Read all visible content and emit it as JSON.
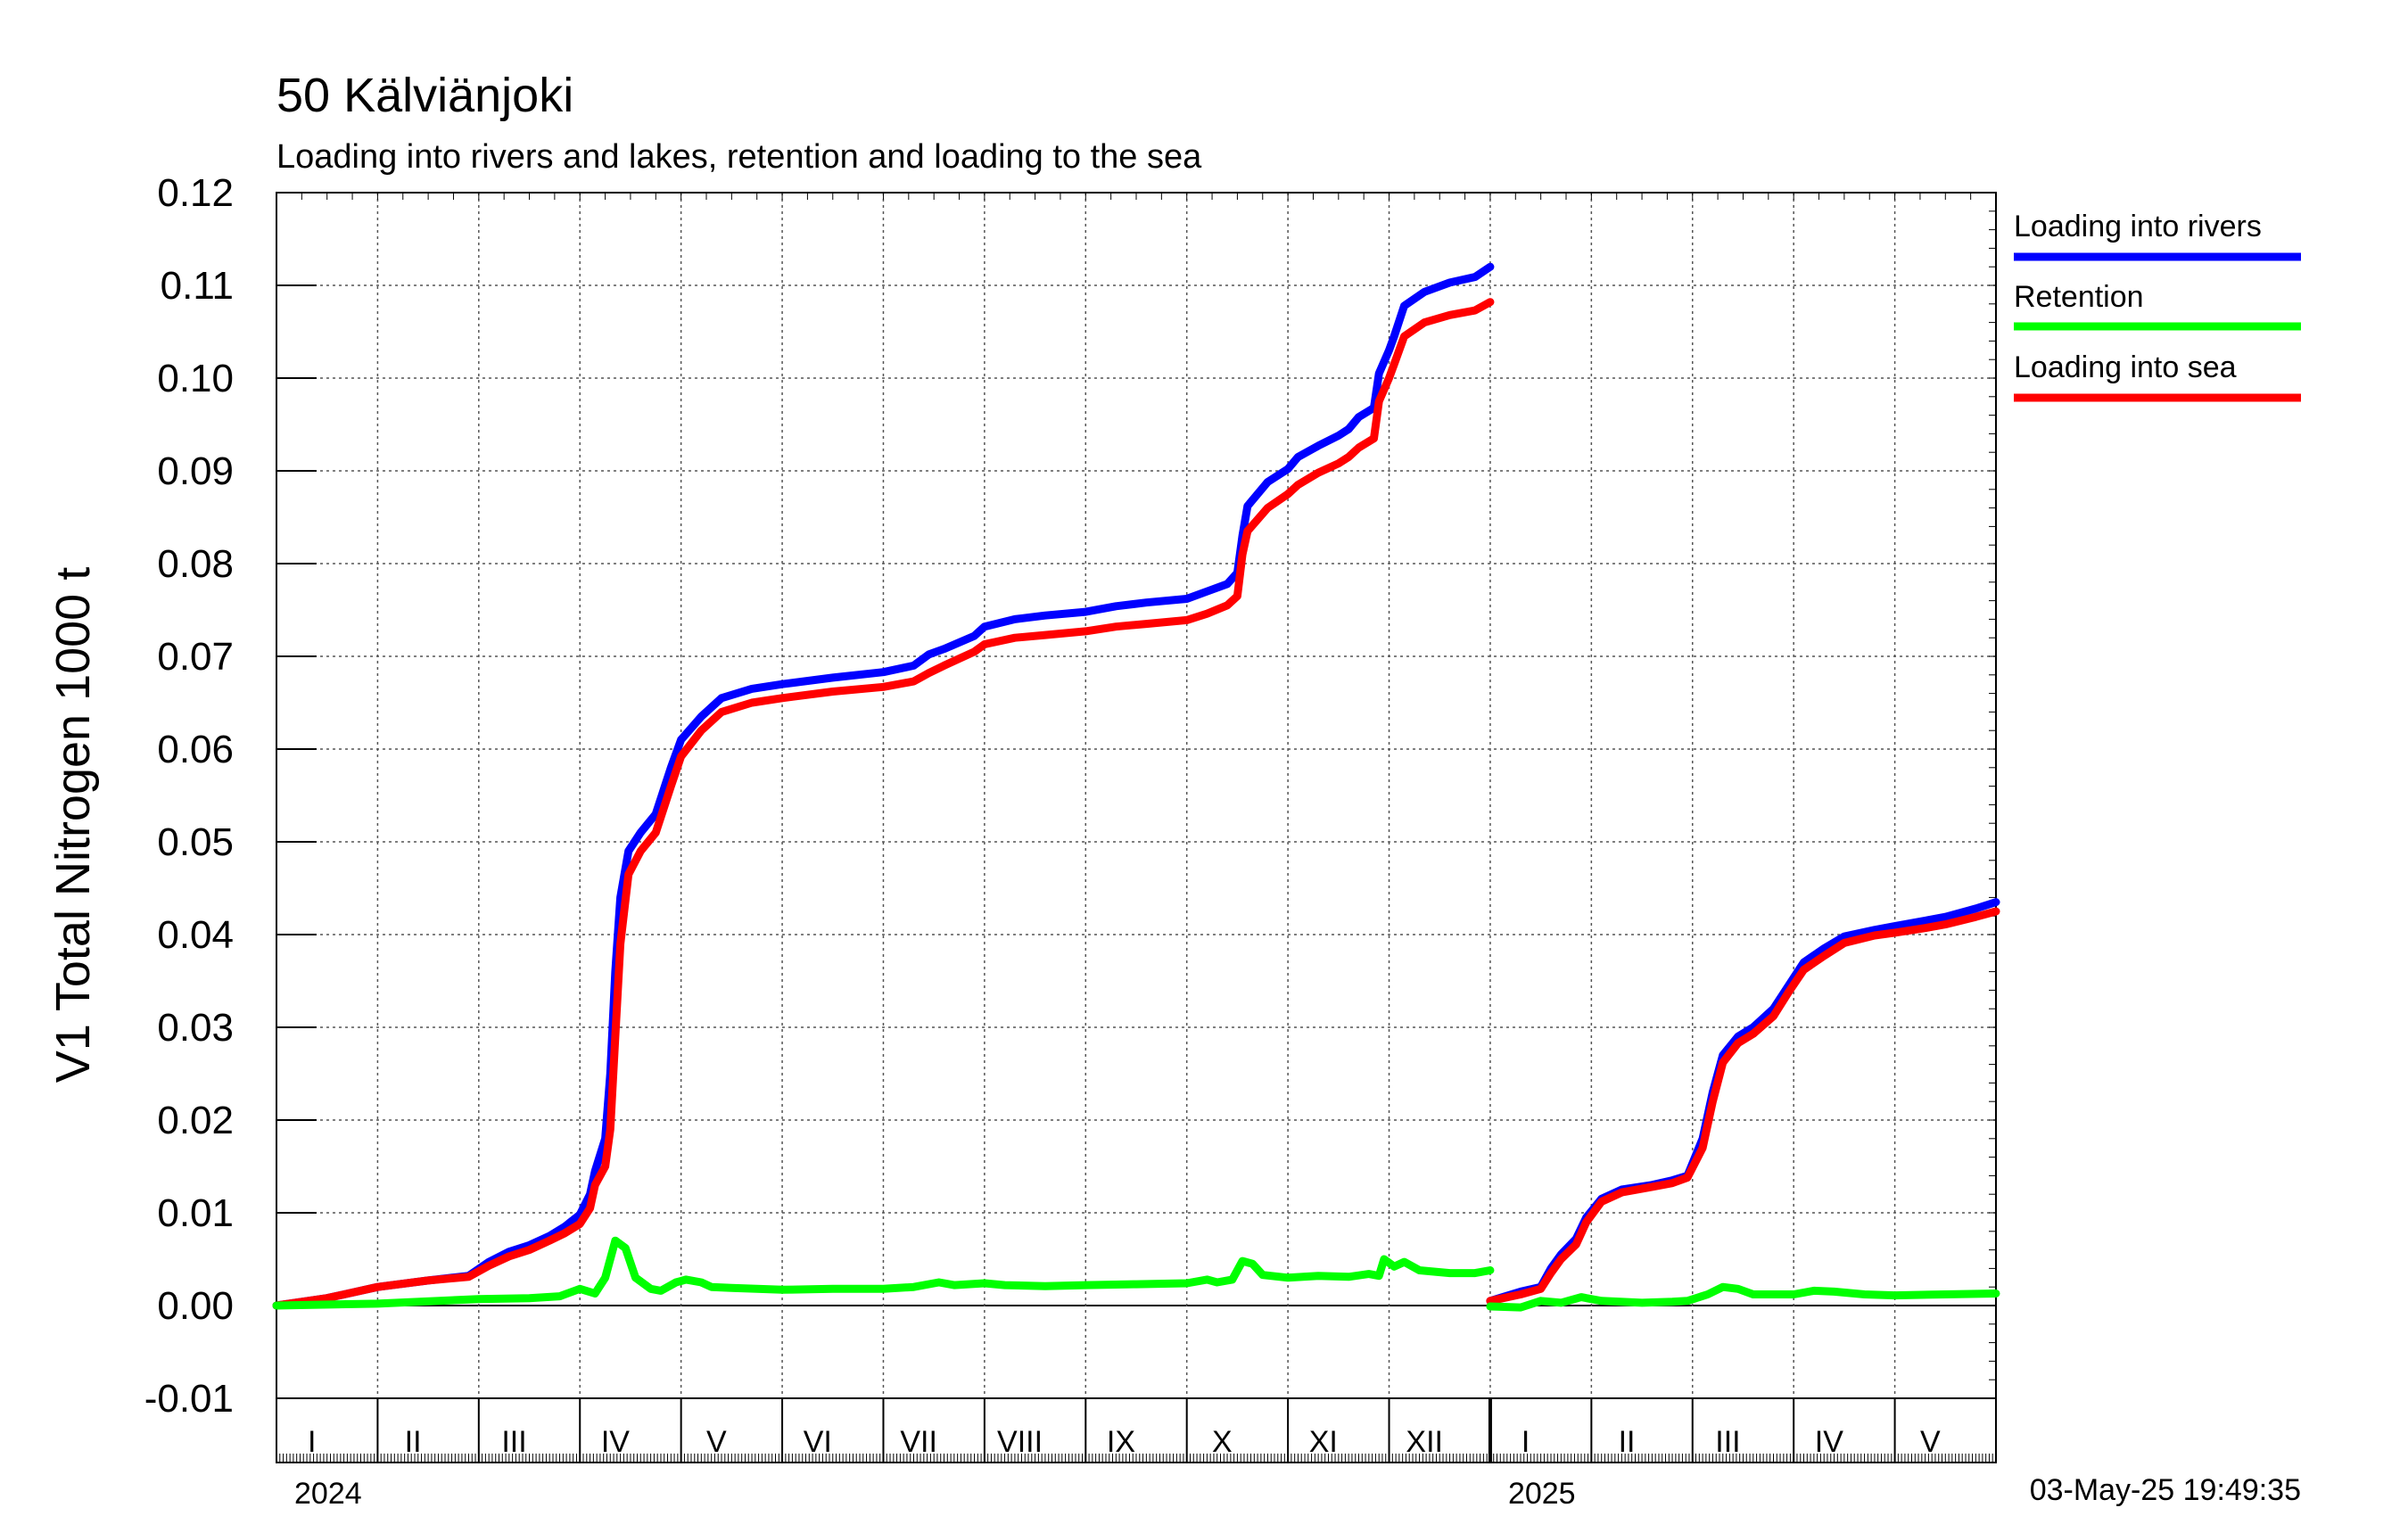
{
  "chart_data": {
    "type": "line",
    "title": "50 Kälviänjoki",
    "subtitle": "Loading into rivers and lakes, retention and loading to the sea",
    "ylabel": "V1 Total Nitrogen 1000 t",
    "xlabel": "",
    "ylim": [
      -0.01,
      0.12
    ],
    "yticks": [
      "0.12",
      "0.11",
      "0.10",
      "0.09",
      "0.08",
      "0.07",
      "0.06",
      "0.05",
      "0.04",
      "0.03",
      "0.02",
      "0.01",
      "0.00",
      "-0.01"
    ],
    "xlim": [
      0,
      17
    ],
    "x_unit": "months since 2024-01-01",
    "grid": true,
    "legend_position": "right",
    "months": [
      {
        "label": "I",
        "start": 0
      },
      {
        "label": "II",
        "start": 1
      },
      {
        "label": "III",
        "start": 2
      },
      {
        "label": "IV",
        "start": 3
      },
      {
        "label": "V",
        "start": 4
      },
      {
        "label": "VI",
        "start": 5
      },
      {
        "label": "VII",
        "start": 6
      },
      {
        "label": "VIII",
        "start": 7
      },
      {
        "label": "IX",
        "start": 8
      },
      {
        "label": "X",
        "start": 9
      },
      {
        "label": "XI",
        "start": 10
      },
      {
        "label": "XII",
        "start": 11
      },
      {
        "label": "I",
        "start": 12
      },
      {
        "label": "II",
        "start": 13
      },
      {
        "label": "III",
        "start": 14
      },
      {
        "label": "IV",
        "start": 15
      },
      {
        "label": "V",
        "start": 16
      }
    ],
    "years": [
      {
        "label": "2024",
        "x": 0
      },
      {
        "label": "2025",
        "x": 12
      }
    ],
    "timestamp": "03-May-25 19:49:35",
    "series": [
      {
        "name": "Loading into rivers",
        "color": "#0000ff",
        "segments": [
          [
            [
              0,
              0
            ],
            [
              0.5,
              0.0008
            ],
            [
              1,
              0.002
            ],
            [
              1.5,
              0.0027
            ],
            [
              1.9,
              0.0032
            ],
            [
              2.1,
              0.0047
            ],
            [
              2.3,
              0.0058
            ],
            [
              2.5,
              0.0065
            ],
            [
              2.7,
              0.0075
            ],
            [
              2.85,
              0.0085
            ],
            [
              3.0,
              0.0098
            ],
            [
              3.1,
              0.012
            ],
            [
              3.15,
              0.0145
            ],
            [
              3.25,
              0.018
            ],
            [
              3.3,
              0.025
            ],
            [
              3.35,
              0.036
            ],
            [
              3.4,
              0.044
            ],
            [
              3.48,
              0.049
            ],
            [
              3.6,
              0.051
            ],
            [
              3.75,
              0.053
            ],
            [
              3.9,
              0.058
            ],
            [
              4.0,
              0.061
            ],
            [
              4.2,
              0.0635
            ],
            [
              4.4,
              0.0655
            ],
            [
              4.7,
              0.0665
            ],
            [
              5.0,
              0.067
            ],
            [
              5.5,
              0.0677
            ],
            [
              6.0,
              0.0683
            ],
            [
              6.3,
              0.069
            ],
            [
              6.45,
              0.0702
            ],
            [
              6.6,
              0.0708
            ],
            [
              6.9,
              0.0722
            ],
            [
              7.0,
              0.0732
            ],
            [
              7.3,
              0.074
            ],
            [
              7.6,
              0.0744
            ],
            [
              8.0,
              0.0748
            ],
            [
              8.3,
              0.0754
            ],
            [
              8.6,
              0.0758
            ],
            [
              9.0,
              0.0762
            ],
            [
              9.2,
              0.077
            ],
            [
              9.4,
              0.0778
            ],
            [
              9.5,
              0.079
            ],
            [
              9.55,
              0.083
            ],
            [
              9.6,
              0.0862
            ],
            [
              9.8,
              0.0888
            ],
            [
              10.0,
              0.0902
            ],
            [
              10.1,
              0.0915
            ],
            [
              10.3,
              0.0927
            ],
            [
              10.5,
              0.0938
            ],
            [
              10.6,
              0.0945
            ],
            [
              10.7,
              0.0958
            ],
            [
              10.85,
              0.0968
            ],
            [
              10.9,
              0.1005
            ],
            [
              11.0,
              0.103
            ],
            [
              11.05,
              0.1045
            ],
            [
              11.15,
              0.1078
            ],
            [
              11.35,
              0.1093
            ],
            [
              11.6,
              0.1103
            ],
            [
              11.85,
              0.1109
            ],
            [
              12.0,
              0.112
            ]
          ],
          [
            [
              12.0,
              0.0005
            ],
            [
              12.3,
              0.0015
            ],
            [
              12.5,
              0.002
            ],
            [
              12.6,
              0.004
            ],
            [
              12.7,
              0.0055
            ],
            [
              12.85,
              0.0072
            ],
            [
              12.95,
              0.0095
            ],
            [
              13.1,
              0.0115
            ],
            [
              13.3,
              0.0125
            ],
            [
              13.6,
              0.013
            ],
            [
              13.8,
              0.0135
            ],
            [
              13.95,
              0.014
            ],
            [
              14.1,
              0.018
            ],
            [
              14.2,
              0.023
            ],
            [
              14.3,
              0.027
            ],
            [
              14.45,
              0.029
            ],
            [
              14.6,
              0.03
            ],
            [
              14.8,
              0.032
            ],
            [
              14.95,
              0.0345
            ],
            [
              15.1,
              0.037
            ],
            [
              15.3,
              0.0385
            ],
            [
              15.5,
              0.0398
            ],
            [
              15.8,
              0.0405
            ],
            [
              16.0,
              0.0409
            ],
            [
              16.3,
              0.0415
            ],
            [
              16.5,
              0.0419
            ],
            [
              16.8,
              0.0428
            ],
            [
              17.0,
              0.0435
            ]
          ]
        ]
      },
      {
        "name": "Retention",
        "color": "#00ff00",
        "segments": [
          [
            [
              0,
              0
            ],
            [
              1,
              0.0002
            ],
            [
              2,
              0.0007
            ],
            [
              2.5,
              0.0008
            ],
            [
              2.8,
              0.001
            ],
            [
              3.0,
              0.0018
            ],
            [
              3.15,
              0.0013
            ],
            [
              3.25,
              0.003
            ],
            [
              3.35,
              0.007
            ],
            [
              3.45,
              0.0062
            ],
            [
              3.55,
              0.003
            ],
            [
              3.7,
              0.0018
            ],
            [
              3.8,
              0.0016
            ],
            [
              3.95,
              0.0025
            ],
            [
              4.05,
              0.0028
            ],
            [
              4.2,
              0.0025
            ],
            [
              4.3,
              0.002
            ],
            [
              4.5,
              0.0019
            ],
            [
              5.0,
              0.0017
            ],
            [
              5.5,
              0.0018
            ],
            [
              6.0,
              0.0018
            ],
            [
              6.3,
              0.002
            ],
            [
              6.55,
              0.0025
            ],
            [
              6.7,
              0.0022
            ],
            [
              7.0,
              0.0024
            ],
            [
              7.2,
              0.0022
            ],
            [
              7.6,
              0.0021
            ],
            [
              8.0,
              0.0022
            ],
            [
              8.5,
              0.0023
            ],
            [
              9.0,
              0.0024
            ],
            [
              9.2,
              0.0028
            ],
            [
              9.3,
              0.0025
            ],
            [
              9.45,
              0.0028
            ],
            [
              9.55,
              0.0048
            ],
            [
              9.65,
              0.0045
            ],
            [
              9.75,
              0.0033
            ],
            [
              10.0,
              0.003
            ],
            [
              10.3,
              0.0032
            ],
            [
              10.6,
              0.0031
            ],
            [
              10.8,
              0.0034
            ],
            [
              10.9,
              0.0032
            ],
            [
              10.95,
              0.005
            ],
            [
              11.05,
              0.0042
            ],
            [
              11.15,
              0.0047
            ],
            [
              11.3,
              0.0038
            ],
            [
              11.6,
              0.0035
            ],
            [
              11.85,
              0.0035
            ],
            [
              12.0,
              0.0038
            ]
          ],
          [
            [
              12.0,
              -0.0001
            ],
            [
              12.3,
              -0.0002
            ],
            [
              12.5,
              0.0005
            ],
            [
              12.7,
              0.0003
            ],
            [
              12.9,
              0.0009
            ],
            [
              13.1,
              0.0005
            ],
            [
              13.5,
              0.0003
            ],
            [
              13.8,
              0.0004
            ],
            [
              13.95,
              0.0005
            ],
            [
              14.15,
              0.0012
            ],
            [
              14.3,
              0.002
            ],
            [
              14.45,
              0.0018
            ],
            [
              14.6,
              0.0012
            ],
            [
              15.0,
              0.0012
            ],
            [
              15.2,
              0.0016
            ],
            [
              15.4,
              0.0015
            ],
            [
              15.7,
              0.0012
            ],
            [
              16.0,
              0.0011
            ],
            [
              16.5,
              0.0012
            ],
            [
              17.0,
              0.0013
            ]
          ]
        ]
      },
      {
        "name": "Loading into sea",
        "color": "#ff0000",
        "segments": [
          [
            [
              0,
              0
            ],
            [
              0.5,
              0.0008
            ],
            [
              1,
              0.002
            ],
            [
              1.5,
              0.0027
            ],
            [
              1.9,
              0.0031
            ],
            [
              2.1,
              0.0043
            ],
            [
              2.3,
              0.0053
            ],
            [
              2.5,
              0.006
            ],
            [
              2.7,
              0.007
            ],
            [
              2.85,
              0.0078
            ],
            [
              3.0,
              0.0088
            ],
            [
              3.1,
              0.0105
            ],
            [
              3.15,
              0.013
            ],
            [
              3.25,
              0.015
            ],
            [
              3.3,
              0.019
            ],
            [
              3.35,
              0.029
            ],
            [
              3.4,
              0.039
            ],
            [
              3.48,
              0.0465
            ],
            [
              3.6,
              0.049
            ],
            [
              3.75,
              0.051
            ],
            [
              3.9,
              0.056
            ],
            [
              4.0,
              0.0592
            ],
            [
              4.2,
              0.062
            ],
            [
              4.4,
              0.064
            ],
            [
              4.7,
              0.065
            ],
            [
              5.0,
              0.0655
            ],
            [
              5.5,
              0.0662
            ],
            [
              6.0,
              0.0667
            ],
            [
              6.3,
              0.0673
            ],
            [
              6.45,
              0.0682
            ],
            [
              6.6,
              0.069
            ],
            [
              6.9,
              0.0705
            ],
            [
              7.0,
              0.0713
            ],
            [
              7.3,
              0.072
            ],
            [
              7.6,
              0.0723
            ],
            [
              8.0,
              0.0727
            ],
            [
              8.3,
              0.0732
            ],
            [
              8.6,
              0.0735
            ],
            [
              9.0,
              0.0739
            ],
            [
              9.2,
              0.0746
            ],
            [
              9.4,
              0.0755
            ],
            [
              9.5,
              0.0765
            ],
            [
              9.55,
              0.081
            ],
            [
              9.6,
              0.0835
            ],
            [
              9.8,
              0.086
            ],
            [
              10.0,
              0.0875
            ],
            [
              10.1,
              0.0885
            ],
            [
              10.3,
              0.0898
            ],
            [
              10.5,
              0.0908
            ],
            [
              10.6,
              0.0915
            ],
            [
              10.7,
              0.0925
            ],
            [
              10.85,
              0.0935
            ],
            [
              10.9,
              0.0975
            ],
            [
              11.0,
              0.1
            ],
            [
              11.05,
              0.1015
            ],
            [
              11.15,
              0.1045
            ],
            [
              11.35,
              0.106
            ],
            [
              11.6,
              0.1068
            ],
            [
              11.85,
              0.1073
            ],
            [
              12.0,
              0.1082
            ]
          ],
          [
            [
              12.0,
              0.0005
            ],
            [
              12.3,
              0.0012
            ],
            [
              12.5,
              0.0018
            ],
            [
              12.6,
              0.0035
            ],
            [
              12.7,
              0.005
            ],
            [
              12.85,
              0.0066
            ],
            [
              12.95,
              0.009
            ],
            [
              13.1,
              0.0112
            ],
            [
              13.3,
              0.0122
            ],
            [
              13.6,
              0.0128
            ],
            [
              13.8,
              0.0132
            ],
            [
              13.95,
              0.0138
            ],
            [
              14.1,
              0.017
            ],
            [
              14.2,
              0.022
            ],
            [
              14.3,
              0.0262
            ],
            [
              14.45,
              0.0283
            ],
            [
              14.6,
              0.0293
            ],
            [
              14.8,
              0.0312
            ],
            [
              14.95,
              0.0338
            ],
            [
              15.1,
              0.0362
            ],
            [
              15.3,
              0.0377
            ],
            [
              15.5,
              0.0391
            ],
            [
              15.8,
              0.0399
            ],
            [
              16.0,
              0.0402
            ],
            [
              16.3,
              0.0407
            ],
            [
              16.5,
              0.0411
            ],
            [
              16.8,
              0.0419
            ],
            [
              17.0,
              0.0425
            ]
          ]
        ]
      }
    ]
  }
}
